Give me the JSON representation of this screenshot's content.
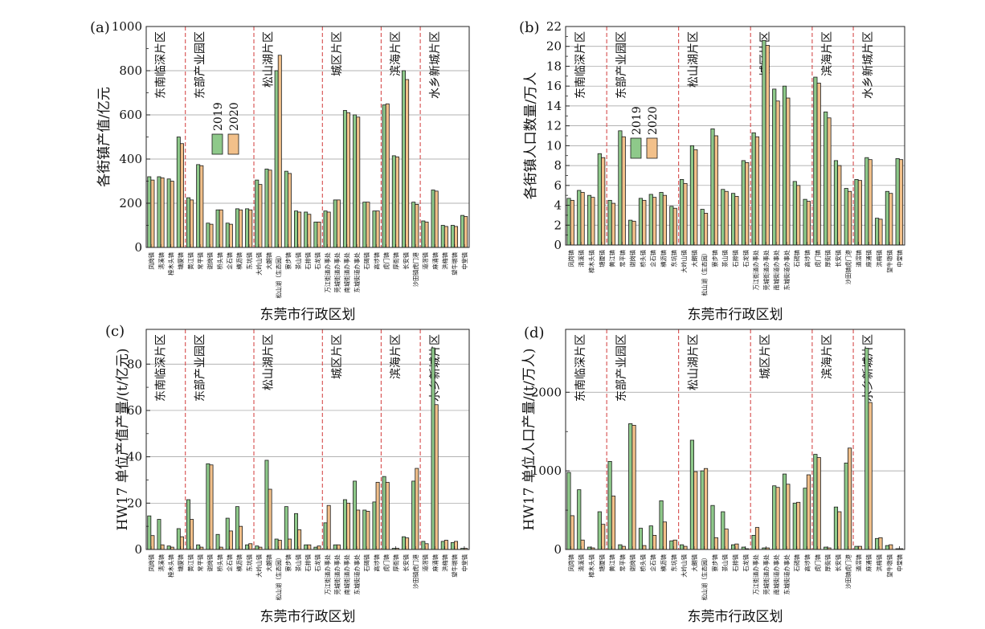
{
  "colors": {
    "y2019": "#8ec98a",
    "y2020": "#f2c08a",
    "stroke": "#1a1a1a",
    "divider": "#d23a3a",
    "grid": "#9a9a9a"
  },
  "chart_data": [
    {
      "type": "bar",
      "panel_label": "(a)",
      "ylabel": "各街镇产值/亿元",
      "xlabel": "东莞市行政区划",
      "ylim": [
        0,
        1000
      ],
      "yticks": [
        0,
        200,
        400,
        600,
        800,
        1000
      ],
      "grid": true,
      "legend": {
        "entries": [
          "2019",
          "2020"
        ],
        "placement": "upper-left"
      },
      "categories": [
        "凤岗镇",
        "清溪镇",
        "樟木头镇",
        "塘厦镇",
        "黄江镇",
        "常平镇",
        "谢岗镇",
        "桥头镇",
        "企石镇",
        "横沥镇",
        "东坑镇",
        "大岭山镇",
        "大朗镇",
        "松山湖（生态园）",
        "寮步镇",
        "茶山镇",
        "石排镇",
        "石龙镇",
        "万江街道办事处",
        "莞城街道办事处",
        "南城街道办事处",
        "东城街道办事处",
        "石碣镇",
        "高埗镇",
        "虎门镇",
        "厚街镇",
        "长安镇",
        "沙田镇虎门港",
        "道滘镇",
        "麻涌镇",
        "洪梅镇",
        "望牛墩镇",
        "中堂镇"
      ],
      "series": [
        {
          "name": "2019",
          "values": [
            320,
            320,
            310,
            500,
            225,
            375,
            110,
            170,
            110,
            175,
            175,
            305,
            355,
            800,
            345,
            165,
            160,
            115,
            165,
            215,
            620,
            600,
            205,
            165,
            645,
            415,
            800,
            205,
            120,
            260,
            100,
            100,
            145
          ]
        },
        {
          "name": "2020",
          "values": [
            305,
            315,
            300,
            470,
            215,
            370,
            105,
            170,
            105,
            170,
            170,
            285,
            350,
            870,
            335,
            160,
            150,
            115,
            160,
            215,
            610,
            590,
            205,
            165,
            650,
            410,
            760,
            195,
            115,
            255,
            95,
            95,
            140
          ]
        }
      ],
      "regions": [
        {
          "name": "东南临深片区",
          "start": 0,
          "end": 3
        },
        {
          "name": "东部产业园区",
          "start": 4,
          "end": 10
        },
        {
          "name": "松山湖片区",
          "start": 11,
          "end": 17
        },
        {
          "name": "城区片区",
          "start": 18,
          "end": 23
        },
        {
          "name": "滨海片区",
          "start": 24,
          "end": 27
        },
        {
          "name": "水乡新城片区",
          "start": 28,
          "end": 32
        }
      ]
    },
    {
      "type": "bar",
      "panel_label": "(b)",
      "ylabel": "各街镇人口数量/万人",
      "xlabel": "东莞市行政区划",
      "ylim": [
        0,
        22
      ],
      "yticks": [
        0,
        2,
        4,
        6,
        8,
        10,
        12,
        14,
        16,
        18,
        20,
        22
      ],
      "grid": true,
      "legend": {
        "entries": [
          "2019",
          "2020"
        ],
        "placement": "upper-left"
      },
      "categories": [
        "凤岗镇",
        "清溪镇",
        "樟木头镇",
        "塘厦镇",
        "黄江镇",
        "常平镇",
        "谢岗镇",
        "桥头镇",
        "企石镇",
        "横沥镇",
        "东坑镇",
        "大岭山镇",
        "大朗镇",
        "松山湖（生态园）",
        "寮步镇",
        "茶山镇",
        "石排镇",
        "石龙镇",
        "万江街道办事处",
        "莞城街道办事处",
        "南城街道办事处",
        "东城街道办事处",
        "石碣镇",
        "高埗镇",
        "虎门镇",
        "厚街镇",
        "长安镇",
        "沙田镇虎门港",
        "道滘镇",
        "麻涌镇",
        "洪梅镇",
        "望牛墩镇",
        "中堂镇"
      ],
      "series": [
        {
          "name": "2019",
          "values": [
            4.7,
            5.5,
            5.0,
            9.2,
            4.5,
            11.5,
            2.5,
            4.7,
            5.1,
            5.3,
            3.9,
            6.6,
            10.0,
            3.6,
            11.7,
            5.6,
            5.2,
            8.5,
            11.3,
            20.6,
            15.7,
            16.0,
            6.4,
            4.6,
            16.9,
            13.4,
            8.5,
            5.7,
            6.6,
            8.8,
            2.7,
            5.4,
            8.7
          ]
        },
        {
          "name": "2020",
          "values": [
            4.5,
            5.3,
            4.8,
            8.8,
            4.2,
            10.9,
            2.4,
            4.5,
            4.8,
            5.0,
            3.7,
            6.2,
            9.6,
            3.2,
            11.0,
            5.4,
            4.9,
            8.3,
            10.9,
            20.1,
            14.5,
            14.8,
            6.0,
            4.4,
            16.3,
            12.8,
            8.0,
            5.4,
            6.5,
            8.6,
            2.6,
            5.2,
            8.6
          ]
        }
      ],
      "regions": [
        {
          "name": "东南临深片区",
          "start": 0,
          "end": 3
        },
        {
          "name": "东部产业园区",
          "start": 4,
          "end": 10
        },
        {
          "name": "松山湖片区",
          "start": 11,
          "end": 17
        },
        {
          "name": "城区片区",
          "start": 18,
          "end": 23
        },
        {
          "name": "滨海片区",
          "start": 24,
          "end": 27
        },
        {
          "name": "水乡新城片区",
          "start": 28,
          "end": 32
        }
      ]
    },
    {
      "type": "bar",
      "panel_label": "(c)",
      "ylabel": "HW17 单位产值产量/(t/亿元)",
      "xlabel": "东莞市行政区划",
      "ylim": [
        0,
        95
      ],
      "yticks": [
        0,
        20,
        40,
        60,
        80
      ],
      "grid": true,
      "categories": [
        "凤岗镇",
        "清溪镇",
        "樟木头镇",
        "塘厦镇",
        "黄江镇",
        "常平镇",
        "谢岗镇",
        "桥头镇",
        "企石镇",
        "横沥镇",
        "东坑镇",
        "大岭山镇",
        "大朗镇",
        "松山湖（生态园）",
        "寮步镇",
        "茶山镇",
        "石排镇",
        "石龙镇",
        "万江街道办事处",
        "莞城街道办事处",
        "南城街道办事处",
        "东城街道办事处",
        "石碣镇",
        "高埗镇",
        "虎门镇",
        "厚街镇",
        "长安镇",
        "沙田镇虎门港",
        "道滘镇",
        "麻涌镇",
        "洪梅镇",
        "望牛墩镇",
        "中堂镇"
      ],
      "series": [
        {
          "name": "2019",
          "values": [
            14.5,
            13.0,
            1.5,
            9.0,
            21.5,
            2.0,
            37.0,
            6.5,
            13.5,
            18.5,
            2.0,
            1.5,
            38.5,
            4.5,
            18.5,
            15.5,
            2.0,
            1.0,
            11.5,
            2.0,
            21.5,
            29.5,
            17.0,
            20.5,
            31.5,
            0.5,
            5.5,
            29.5,
            3.5,
            87.0,
            3.5,
            3.0,
            0.5
          ]
        },
        {
          "name": "2020",
          "values": [
            6.0,
            2.0,
            1.0,
            5.5,
            13.0,
            1.0,
            36.5,
            1.0,
            8.0,
            10.0,
            2.5,
            1.0,
            26.0,
            4.0,
            4.5,
            8.5,
            2.0,
            1.5,
            19.0,
            2.0,
            20.0,
            17.0,
            16.5,
            29.0,
            29.0,
            0.5,
            5.0,
            35.0,
            2.5,
            62.5,
            4.0,
            3.5,
            0.5
          ]
        }
      ],
      "regions": [
        {
          "name": "东南临深片区",
          "start": 0,
          "end": 3
        },
        {
          "name": "东部产业园区",
          "start": 4,
          "end": 10
        },
        {
          "name": "松山湖片区",
          "start": 11,
          "end": 17
        },
        {
          "name": "城区片区",
          "start": 18,
          "end": 23
        },
        {
          "name": "滨海片区",
          "start": 24,
          "end": 27
        },
        {
          "name": "水乡新城片区",
          "start": 28,
          "end": 32
        }
      ]
    },
    {
      "type": "bar",
      "panel_label": "(d)",
      "ylabel": "HW17 单位人口产量/(t/万人)",
      "xlabel": "东莞市行政区划",
      "ylim": [
        0,
        2800
      ],
      "yticks": [
        0,
        1000,
        2000
      ],
      "grid": true,
      "categories": [
        "凤岗镇",
        "清溪镇",
        "樟木头镇",
        "塘厦镇",
        "黄江镇",
        "常平镇",
        "谢岗镇",
        "桥头镇",
        "企石镇",
        "横沥镇",
        "东坑镇",
        "大岭山镇",
        "大朗镇",
        "松山湖（生态园）",
        "寮步镇",
        "茶山镇",
        "石排镇",
        "石龙镇",
        "万江街道办事处",
        "莞城街道办事处",
        "南城街道办事处",
        "东城街道办事处",
        "石碣镇",
        "高埗镇",
        "虎门镇",
        "厚街镇",
        "长安镇",
        "沙田镇虎门港",
        "道滘镇",
        "麻涌镇",
        "洪梅镇",
        "望牛墩镇",
        "中堂镇"
      ],
      "series": [
        {
          "name": "2019",
          "values": [
            980,
            760,
            30,
            480,
            1120,
            60,
            1600,
            270,
            300,
            620,
            110,
            60,
            1390,
            1000,
            560,
            480,
            60,
            30,
            180,
            20,
            810,
            960,
            590,
            780,
            1210,
            30,
            540,
            1100,
            40,
            2560,
            140,
            50,
            10
          ]
        },
        {
          "name": "2020",
          "values": [
            430,
            120,
            20,
            320,
            680,
            40,
            1580,
            50,
            180,
            350,
            120,
            40,
            990,
            1030,
            150,
            260,
            70,
            10,
            280,
            20,
            790,
            830,
            600,
            950,
            1170,
            20,
            480,
            1290,
            40,
            1870,
            150,
            60,
            10
          ]
        }
      ],
      "regions": [
        {
          "name": "东南临深片区",
          "start": 0,
          "end": 3
        },
        {
          "name": "东部产业园区",
          "start": 4,
          "end": 10
        },
        {
          "name": "松山湖片区",
          "start": 11,
          "end": 17
        },
        {
          "name": "城区片区",
          "start": 18,
          "end": 23
        },
        {
          "name": "滨海片区",
          "start": 24,
          "end": 27
        },
        {
          "name": "水乡新城片区",
          "start": 28,
          "end": 32
        }
      ]
    }
  ]
}
